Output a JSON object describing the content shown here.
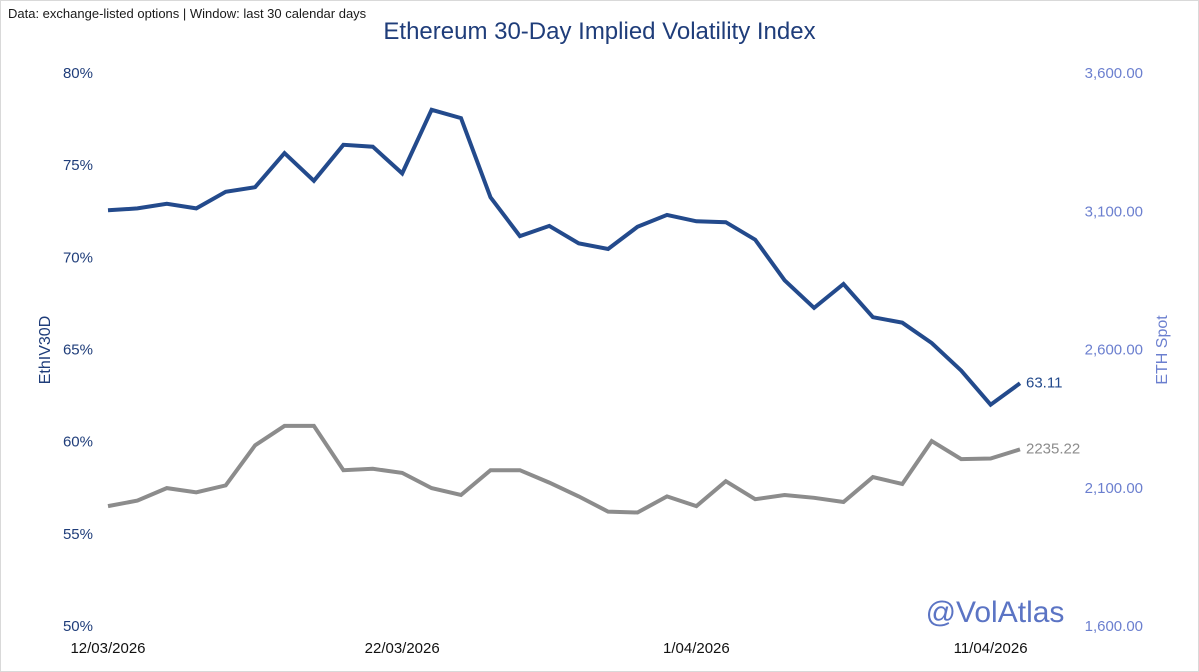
{
  "note": "Data: exchange-listed options | Window: last 30 calendar days",
  "watermark": "@VolAtlas",
  "chart_data": {
    "type": "line",
    "title": "Ethereum 30-Day Implied Volatility Index",
    "ylabel": "EthIV30D",
    "y2label": "ETH Spot",
    "ylim": [
      50,
      80
    ],
    "y2lim": [
      1600,
      3600
    ],
    "yticks": [
      "50%",
      "55%",
      "60%",
      "65%",
      "70%",
      "75%",
      "80%"
    ],
    "y2ticks": [
      "1,600.00",
      "2,100.00",
      "2,600.00",
      "3,100.00",
      "3,600.00"
    ],
    "xticks": [
      "12/03/2026",
      "22/03/2026",
      "1/04/2026",
      "11/04/2026"
    ],
    "xtick_index": [
      0,
      10,
      20,
      30
    ],
    "colors": {
      "iv": "#234a8c",
      "spot": "#8c8c8c"
    },
    "series": [
      {
        "name": "EthIV30D",
        "axis": "left",
        "end_label": "63.11",
        "values": [
          72.5,
          72.6,
          72.85,
          72.6,
          73.5,
          73.75,
          75.6,
          74.1,
          76.05,
          75.95,
          74.5,
          77.95,
          77.5,
          73.2,
          71.1,
          71.65,
          70.7,
          70.4,
          71.6,
          72.25,
          71.9,
          71.85,
          70.9,
          68.7,
          67.2,
          68.5,
          66.7,
          66.4,
          65.3,
          63.8,
          61.95,
          63.11
        ]
      },
      {
        "name": "ETH Spot",
        "axis": "right",
        "end_label": "2235.22",
        "values": [
          2030,
          2050,
          2095,
          2080,
          2105,
          2250,
          2320,
          2320,
          2160,
          2165,
          2150,
          2095,
          2070,
          2160,
          2160,
          2115,
          2065,
          2010,
          2007,
          2065,
          2030,
          2120,
          2055,
          2070,
          2060,
          2045,
          2135,
          2110,
          2265,
          2200,
          2202,
          2235.22
        ]
      }
    ]
  }
}
